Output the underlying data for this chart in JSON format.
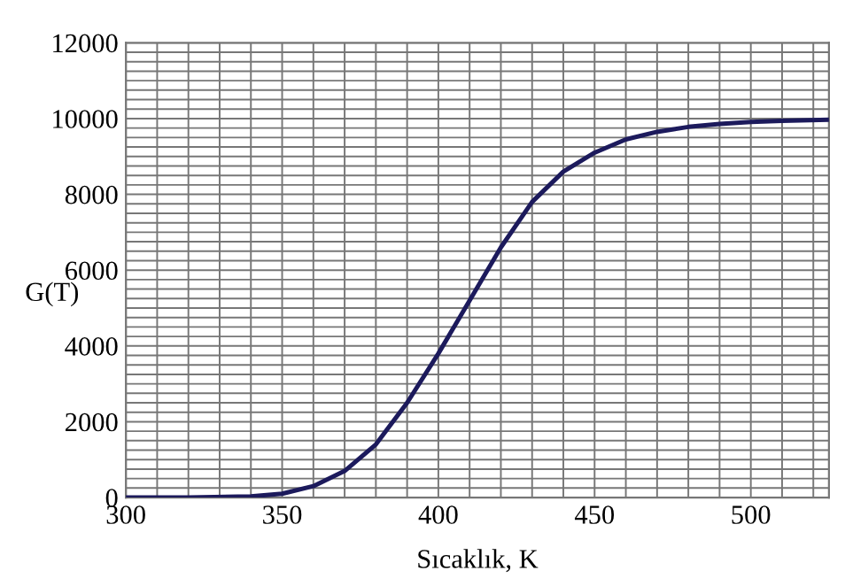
{
  "chart_data": {
    "type": "line",
    "xlabel": "Sıcaklık, K",
    "ylabel": "G(T)",
    "x": [
      300,
      320,
      340,
      350,
      360,
      370,
      380,
      390,
      400,
      410,
      420,
      430,
      440,
      450,
      460,
      470,
      480,
      490,
      500,
      510,
      525
    ],
    "series": [
      {
        "color": "#1c1a5c",
        "values": [
          0,
          0,
          30,
          100,
          300,
          700,
          1400,
          2500,
          3800,
          5200,
          6600,
          7800,
          8600,
          9100,
          9450,
          9650,
          9780,
          9860,
          9910,
          9940,
          9970
        ]
      }
    ],
    "xlim": [
      300,
      525
    ],
    "ylim": [
      0,
      12000
    ],
    "xticks": [
      300,
      {
        "value": 310,
        "label": null
      },
      {
        "value": 320,
        "label": null
      },
      {
        "value": 330,
        "label": null
      },
      {
        "value": 340,
        "label": null
      },
      350,
      {
        "value": 360,
        "label": null
      },
      {
        "value": 370,
        "label": null
      },
      {
        "value": 380,
        "label": null
      },
      {
        "value": 390,
        "label": null
      },
      400,
      {
        "value": 410,
        "label": null
      },
      {
        "value": 420,
        "label": null
      },
      {
        "value": 430,
        "label": null
      },
      {
        "value": 440,
        "label": null
      },
      450,
      {
        "value": 460,
        "label": null
      },
      {
        "value": 470,
        "label": null
      },
      {
        "value": 480,
        "label": null
      },
      {
        "value": 490,
        "label": null
      },
      500,
      {
        "value": 510,
        "label": null
      },
      {
        "value": 520,
        "label": null
      }
    ],
    "yticks": [
      0,
      {
        "value": 250,
        "label": null
      },
      {
        "value": 500,
        "label": null
      },
      {
        "value": 750,
        "label": null
      },
      {
        "value": 1000,
        "label": null
      },
      {
        "value": 1250,
        "label": null
      },
      {
        "value": 1500,
        "label": null
      },
      {
        "value": 1750,
        "label": null
      },
      2000,
      {
        "value": 2250,
        "label": null
      },
      {
        "value": 2500,
        "label": null
      },
      {
        "value": 2750,
        "label": null
      },
      {
        "value": 3000,
        "label": null
      },
      {
        "value": 3250,
        "label": null
      },
      {
        "value": 3500,
        "label": null
      },
      {
        "value": 3750,
        "label": null
      },
      4000,
      {
        "value": 4250,
        "label": null
      },
      {
        "value": 4500,
        "label": null
      },
      {
        "value": 4750,
        "label": null
      },
      {
        "value": 5000,
        "label": null
      },
      {
        "value": 5250,
        "label": null
      },
      {
        "value": 5500,
        "label": null
      },
      {
        "value": 5750,
        "label": null
      },
      6000,
      {
        "value": 6250,
        "label": null
      },
      {
        "value": 6500,
        "label": null
      },
      {
        "value": 6750,
        "label": null
      },
      {
        "value": 7000,
        "label": null
      },
      {
        "value": 7250,
        "label": null
      },
      {
        "value": 7500,
        "label": null
      },
      {
        "value": 7750,
        "label": null
      },
      8000,
      {
        "value": 8250,
        "label": null
      },
      {
        "value": 8500,
        "label": null
      },
      {
        "value": 8750,
        "label": null
      },
      {
        "value": 9000,
        "label": null
      },
      {
        "value": 9250,
        "label": null
      },
      {
        "value": 9500,
        "label": null
      },
      {
        "value": 9750,
        "label": null
      },
      10000,
      {
        "value": 10250,
        "label": null
      },
      {
        "value": 10500,
        "label": null
      },
      {
        "value": 10750,
        "label": null
      },
      {
        "value": 11000,
        "label": null
      },
      {
        "value": 11250,
        "label": null
      },
      {
        "value": 11500,
        "label": null
      },
      {
        "value": 11750,
        "label": null
      },
      12000
    ],
    "grid": true,
    "marker": "none",
    "line_style": "solid"
  }
}
